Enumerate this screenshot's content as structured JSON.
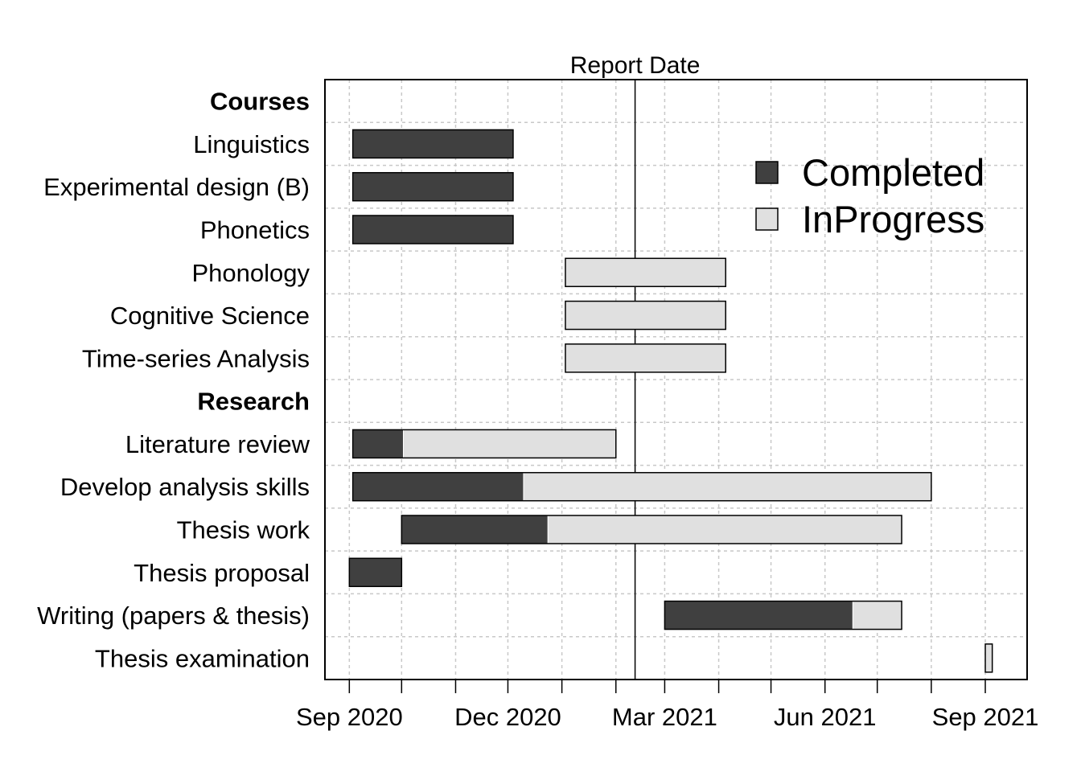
{
  "chart_data": {
    "type": "gantt",
    "title": "",
    "report_date_label": "Report Date",
    "report_date": "2021-02-12",
    "xlim": [
      "2020-08-18",
      "2021-09-25"
    ],
    "x_ticks": [
      "2020-09-01",
      "2020-10-01",
      "2020-11-01",
      "2020-12-01",
      "2021-01-01",
      "2021-02-01",
      "2021-03-01",
      "2021-04-01",
      "2021-05-01",
      "2021-06-01",
      "2021-07-01",
      "2021-08-01",
      "2021-09-01"
    ],
    "x_tick_labels": [
      {
        "date": "2020-09-01",
        "label": "Sep 2020"
      },
      {
        "date": "2020-12-01",
        "label": "Dec 2020"
      },
      {
        "date": "2021-03-01",
        "label": "Mar 2021"
      },
      {
        "date": "2021-06-01",
        "label": "Jun 2021"
      },
      {
        "date": "2021-09-01",
        "label": "Sep 2021"
      }
    ],
    "grid": true,
    "legend": {
      "placement": "top-right",
      "entries": [
        {
          "label": "Completed",
          "color": "#404040"
        },
        {
          "label": "InProgress",
          "color": "#e0e0e0"
        }
      ]
    },
    "colors": {
      "completed": "#404040",
      "in_progress": "#e0e0e0"
    },
    "rows": [
      {
        "label": "Courses",
        "header": true
      },
      {
        "label": "Linguistics",
        "start": "2020-09-03",
        "end": "2020-12-04",
        "completed_until": "2020-12-04"
      },
      {
        "label": "Experimental design (B)",
        "start": "2020-09-03",
        "end": "2020-12-04",
        "completed_until": "2020-12-04"
      },
      {
        "label": "Phonetics",
        "start": "2020-09-03",
        "end": "2020-12-04",
        "completed_until": "2020-12-04"
      },
      {
        "label": "Phonology",
        "start": "2021-01-03",
        "end": "2021-04-05",
        "completed_until": "2021-01-03"
      },
      {
        "label": "Cognitive Science",
        "start": "2021-01-03",
        "end": "2021-04-05",
        "completed_until": "2021-01-03"
      },
      {
        "label": "Time-series Analysis",
        "start": "2021-01-03",
        "end": "2021-04-05",
        "completed_until": "2021-01-03"
      },
      {
        "label": "Research",
        "header": true
      },
      {
        "label": "Literature review",
        "start": "2020-09-03",
        "end": "2021-02-01",
        "completed_until": "2020-10-02"
      },
      {
        "label": "Develop analysis skills",
        "start": "2020-09-03",
        "end": "2021-08-01",
        "completed_until": "2020-12-10"
      },
      {
        "label": "Thesis work",
        "start": "2020-10-01",
        "end": "2021-07-15",
        "completed_until": "2020-12-24"
      },
      {
        "label": "Thesis proposal",
        "start": "2020-09-01",
        "end": "2020-10-01",
        "completed_until": "2020-10-01"
      },
      {
        "label": "Writing (papers & thesis)",
        "start": "2021-03-01",
        "end": "2021-07-15",
        "completed_until": "2021-06-17"
      },
      {
        "label": "Thesis examination",
        "start": "2021-09-01",
        "end": "2021-09-05",
        "completed_until": "2021-09-01"
      }
    ]
  }
}
